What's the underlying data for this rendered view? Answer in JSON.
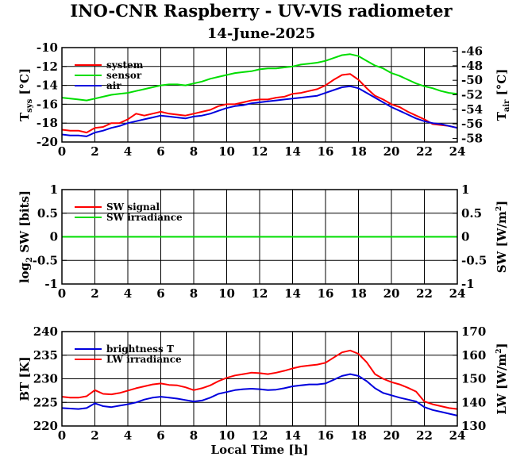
{
  "title": "INO-CNR Raspberry - UV-VIS radiometer",
  "date": "14-June-2025",
  "chart_data": [
    {
      "type": "line",
      "x": [
        0,
        0.5,
        1,
        1.5,
        2,
        2.5,
        3,
        3.5,
        4,
        4.5,
        5,
        5.5,
        6,
        6.5,
        7,
        7.5,
        8,
        8.5,
        9,
        9.5,
        10,
        10.5,
        11,
        11.5,
        12,
        12.5,
        13,
        13.5,
        14,
        14.5,
        15,
        15.5,
        16,
        16.5,
        17,
        17.5,
        18,
        18.5,
        19,
        19.5,
        20,
        20.5,
        21,
        21.5,
        22,
        22.5,
        23,
        23.5,
        24
      ],
      "xlim": [
        0,
        24
      ],
      "xticks": [
        "0",
        "2",
        "4",
        "6",
        "8",
        "10",
        "12",
        "14",
        "16",
        "18",
        "20",
        "22",
        "24"
      ],
      "ylim": [
        -20,
        -10
      ],
      "yticks": [
        "-10",
        "-12",
        "-14",
        "-16",
        "-18",
        "-20"
      ],
      "ylabel": {
        "main": "T",
        "sub": "sys",
        "unit": "[°C]"
      },
      "y2lim": [
        -58.5,
        -45.5
      ],
      "y2ticks": [
        "-46",
        "-48",
        "-50",
        "-52",
        "-54",
        "-56",
        "-58"
      ],
      "y2label": {
        "main": "T",
        "sub": "air",
        "unit": "[°C]"
      },
      "series": [
        {
          "name": "system",
          "color": "#ff0000",
          "axis": "left",
          "values": [
            -18.7,
            -18.8,
            -18.8,
            -19.0,
            -18.5,
            -18.4,
            -18.0,
            -18.0,
            -17.6,
            -17.0,
            -17.2,
            -17.0,
            -16.8,
            -17.0,
            -17.1,
            -17.2,
            -17.0,
            -16.8,
            -16.6,
            -16.2,
            -16.0,
            -16.0,
            -15.8,
            -15.6,
            -15.5,
            -15.5,
            -15.3,
            -15.2,
            -14.9,
            -14.8,
            -14.6,
            -14.4,
            -14.0,
            -13.4,
            -12.9,
            -12.8,
            -13.4,
            -14.3,
            -15.1,
            -15.5,
            -16.0,
            -16.3,
            -16.8,
            -17.2,
            -17.6,
            -18.1,
            -18.2,
            -18.3,
            -18.5
          ]
        },
        {
          "name": "sensor",
          "color": "#00dd00",
          "axis": "left",
          "values": [
            -15.3,
            -15.4,
            -15.5,
            -15.6,
            -15.4,
            -15.2,
            -15.0,
            -14.9,
            -14.8,
            -14.6,
            -14.4,
            -14.2,
            -14.0,
            -13.9,
            -13.9,
            -14.0,
            -13.8,
            -13.6,
            -13.3,
            -13.1,
            -12.9,
            -12.7,
            -12.6,
            -12.5,
            -12.3,
            -12.2,
            -12.2,
            -12.1,
            -12.0,
            -11.8,
            -11.7,
            -11.6,
            -11.4,
            -11.1,
            -10.8,
            -10.7,
            -10.9,
            -11.4,
            -11.9,
            -12.2,
            -12.7,
            -13.0,
            -13.4,
            -13.8,
            -14.1,
            -14.3,
            -14.6,
            -14.8,
            -14.9
          ]
        },
        {
          "name": "air",
          "color": "#0000dd",
          "axis": "left",
          "values": [
            -19.2,
            -19.3,
            -19.3,
            -19.4,
            -19.0,
            -18.8,
            -18.5,
            -18.3,
            -18.0,
            -17.8,
            -17.6,
            -17.4,
            -17.2,
            -17.3,
            -17.4,
            -17.5,
            -17.3,
            -17.2,
            -17.0,
            -16.7,
            -16.4,
            -16.2,
            -16.1,
            -15.9,
            -15.8,
            -15.7,
            -15.6,
            -15.5,
            -15.4,
            -15.3,
            -15.2,
            -15.1,
            -14.8,
            -14.5,
            -14.2,
            -14.1,
            -14.3,
            -14.8,
            -15.3,
            -15.8,
            -16.3,
            -16.7,
            -17.1,
            -17.5,
            -17.8,
            -18.0,
            -18.1,
            -18.3,
            -18.5
          ]
        }
      ],
      "legend": "top-left",
      "grid": true
    },
    {
      "type": "line",
      "x": [
        0,
        24
      ],
      "xlim": [
        0,
        24
      ],
      "xticks": [
        "0",
        "2",
        "4",
        "6",
        "8",
        "10",
        "12",
        "14",
        "16",
        "18",
        "20",
        "22",
        "24"
      ],
      "ylim": [
        -1,
        1
      ],
      "yticks": [
        "1",
        "0.5",
        "0",
        "-0.5",
        "-1"
      ],
      "ylabel": {
        "pre": "log",
        "sub": "2",
        "main": "SW [bits]"
      },
      "y2lim": [
        -1,
        1
      ],
      "y2ticks": [
        "1",
        "0.5",
        "0",
        "-0.5",
        "-1"
      ],
      "y2label": {
        "main": "SW [W/m",
        "sup": "2",
        "end": "]"
      },
      "series": [
        {
          "name": "SW signal",
          "color": "#ff0000",
          "axis": "left",
          "values": [
            0,
            0
          ]
        },
        {
          "name": "SW irradiance",
          "color": "#00dd00",
          "axis": "left",
          "values": [
            0,
            0
          ]
        }
      ],
      "legend": "top-left",
      "grid": true
    },
    {
      "type": "line",
      "x": [
        0,
        0.5,
        1,
        1.5,
        2,
        2.5,
        3,
        3.5,
        4,
        4.5,
        5,
        5.5,
        6,
        6.5,
        7,
        7.5,
        8,
        8.5,
        9,
        9.5,
        10,
        10.5,
        11,
        11.5,
        12,
        12.5,
        13,
        13.5,
        14,
        14.5,
        15,
        15.5,
        16,
        16.5,
        17,
        17.5,
        18,
        18.5,
        19,
        19.5,
        20,
        20.5,
        21,
        21.5,
        22,
        22.5,
        23,
        23.5,
        24
      ],
      "xlim": [
        0,
        24
      ],
      "xticks": [
        "0",
        "2",
        "4",
        "6",
        "8",
        "10",
        "12",
        "14",
        "16",
        "18",
        "20",
        "22",
        "24"
      ],
      "xlabel": "Local Time [h]",
      "ylim": [
        220,
        240
      ],
      "yticks": [
        "240",
        "235",
        "230",
        "225",
        "220"
      ],
      "ylabel": {
        "main": "BT [K]"
      },
      "y2lim": [
        130,
        170
      ],
      "y2ticks": [
        "170",
        "160",
        "150",
        "140",
        "130"
      ],
      "y2label": {
        "main": "LW [W/m",
        "sup": "2",
        "end": "]"
      },
      "series": [
        {
          "name": "brightness T",
          "color": "#0000dd",
          "axis": "left",
          "values": [
            223.8,
            223.7,
            223.6,
            223.8,
            224.8,
            224.2,
            224.0,
            224.3,
            224.6,
            225.0,
            225.6,
            226.0,
            226.2,
            226.0,
            225.8,
            225.5,
            225.2,
            225.4,
            226.0,
            226.8,
            227.2,
            227.6,
            227.8,
            227.9,
            227.8,
            227.6,
            227.7,
            228.0,
            228.4,
            228.6,
            228.8,
            228.8,
            229.0,
            229.8,
            230.6,
            231.0,
            230.6,
            229.5,
            228.0,
            227.0,
            226.5,
            226.0,
            225.6,
            225.2,
            224.0,
            223.4,
            223.0,
            222.6,
            222.2
          ]
        },
        {
          "name": "LW irradiance",
          "color": "#ff0000",
          "axis": "left",
          "values": [
            226.2,
            226.0,
            226.0,
            226.3,
            227.6,
            226.8,
            226.7,
            227.0,
            227.5,
            228.0,
            228.4,
            228.8,
            229.0,
            228.7,
            228.6,
            228.2,
            227.6,
            228.0,
            228.6,
            229.5,
            230.2,
            230.7,
            231.0,
            231.3,
            231.2,
            231.0,
            231.3,
            231.7,
            232.2,
            232.6,
            232.8,
            233.0,
            233.4,
            234.5,
            235.6,
            236.0,
            235.3,
            233.5,
            231.0,
            230.0,
            229.3,
            228.8,
            228.1,
            227.3,
            225.2,
            224.6,
            224.2,
            223.8,
            223.6
          ]
        }
      ],
      "legend": "top-left",
      "grid": true
    }
  ]
}
